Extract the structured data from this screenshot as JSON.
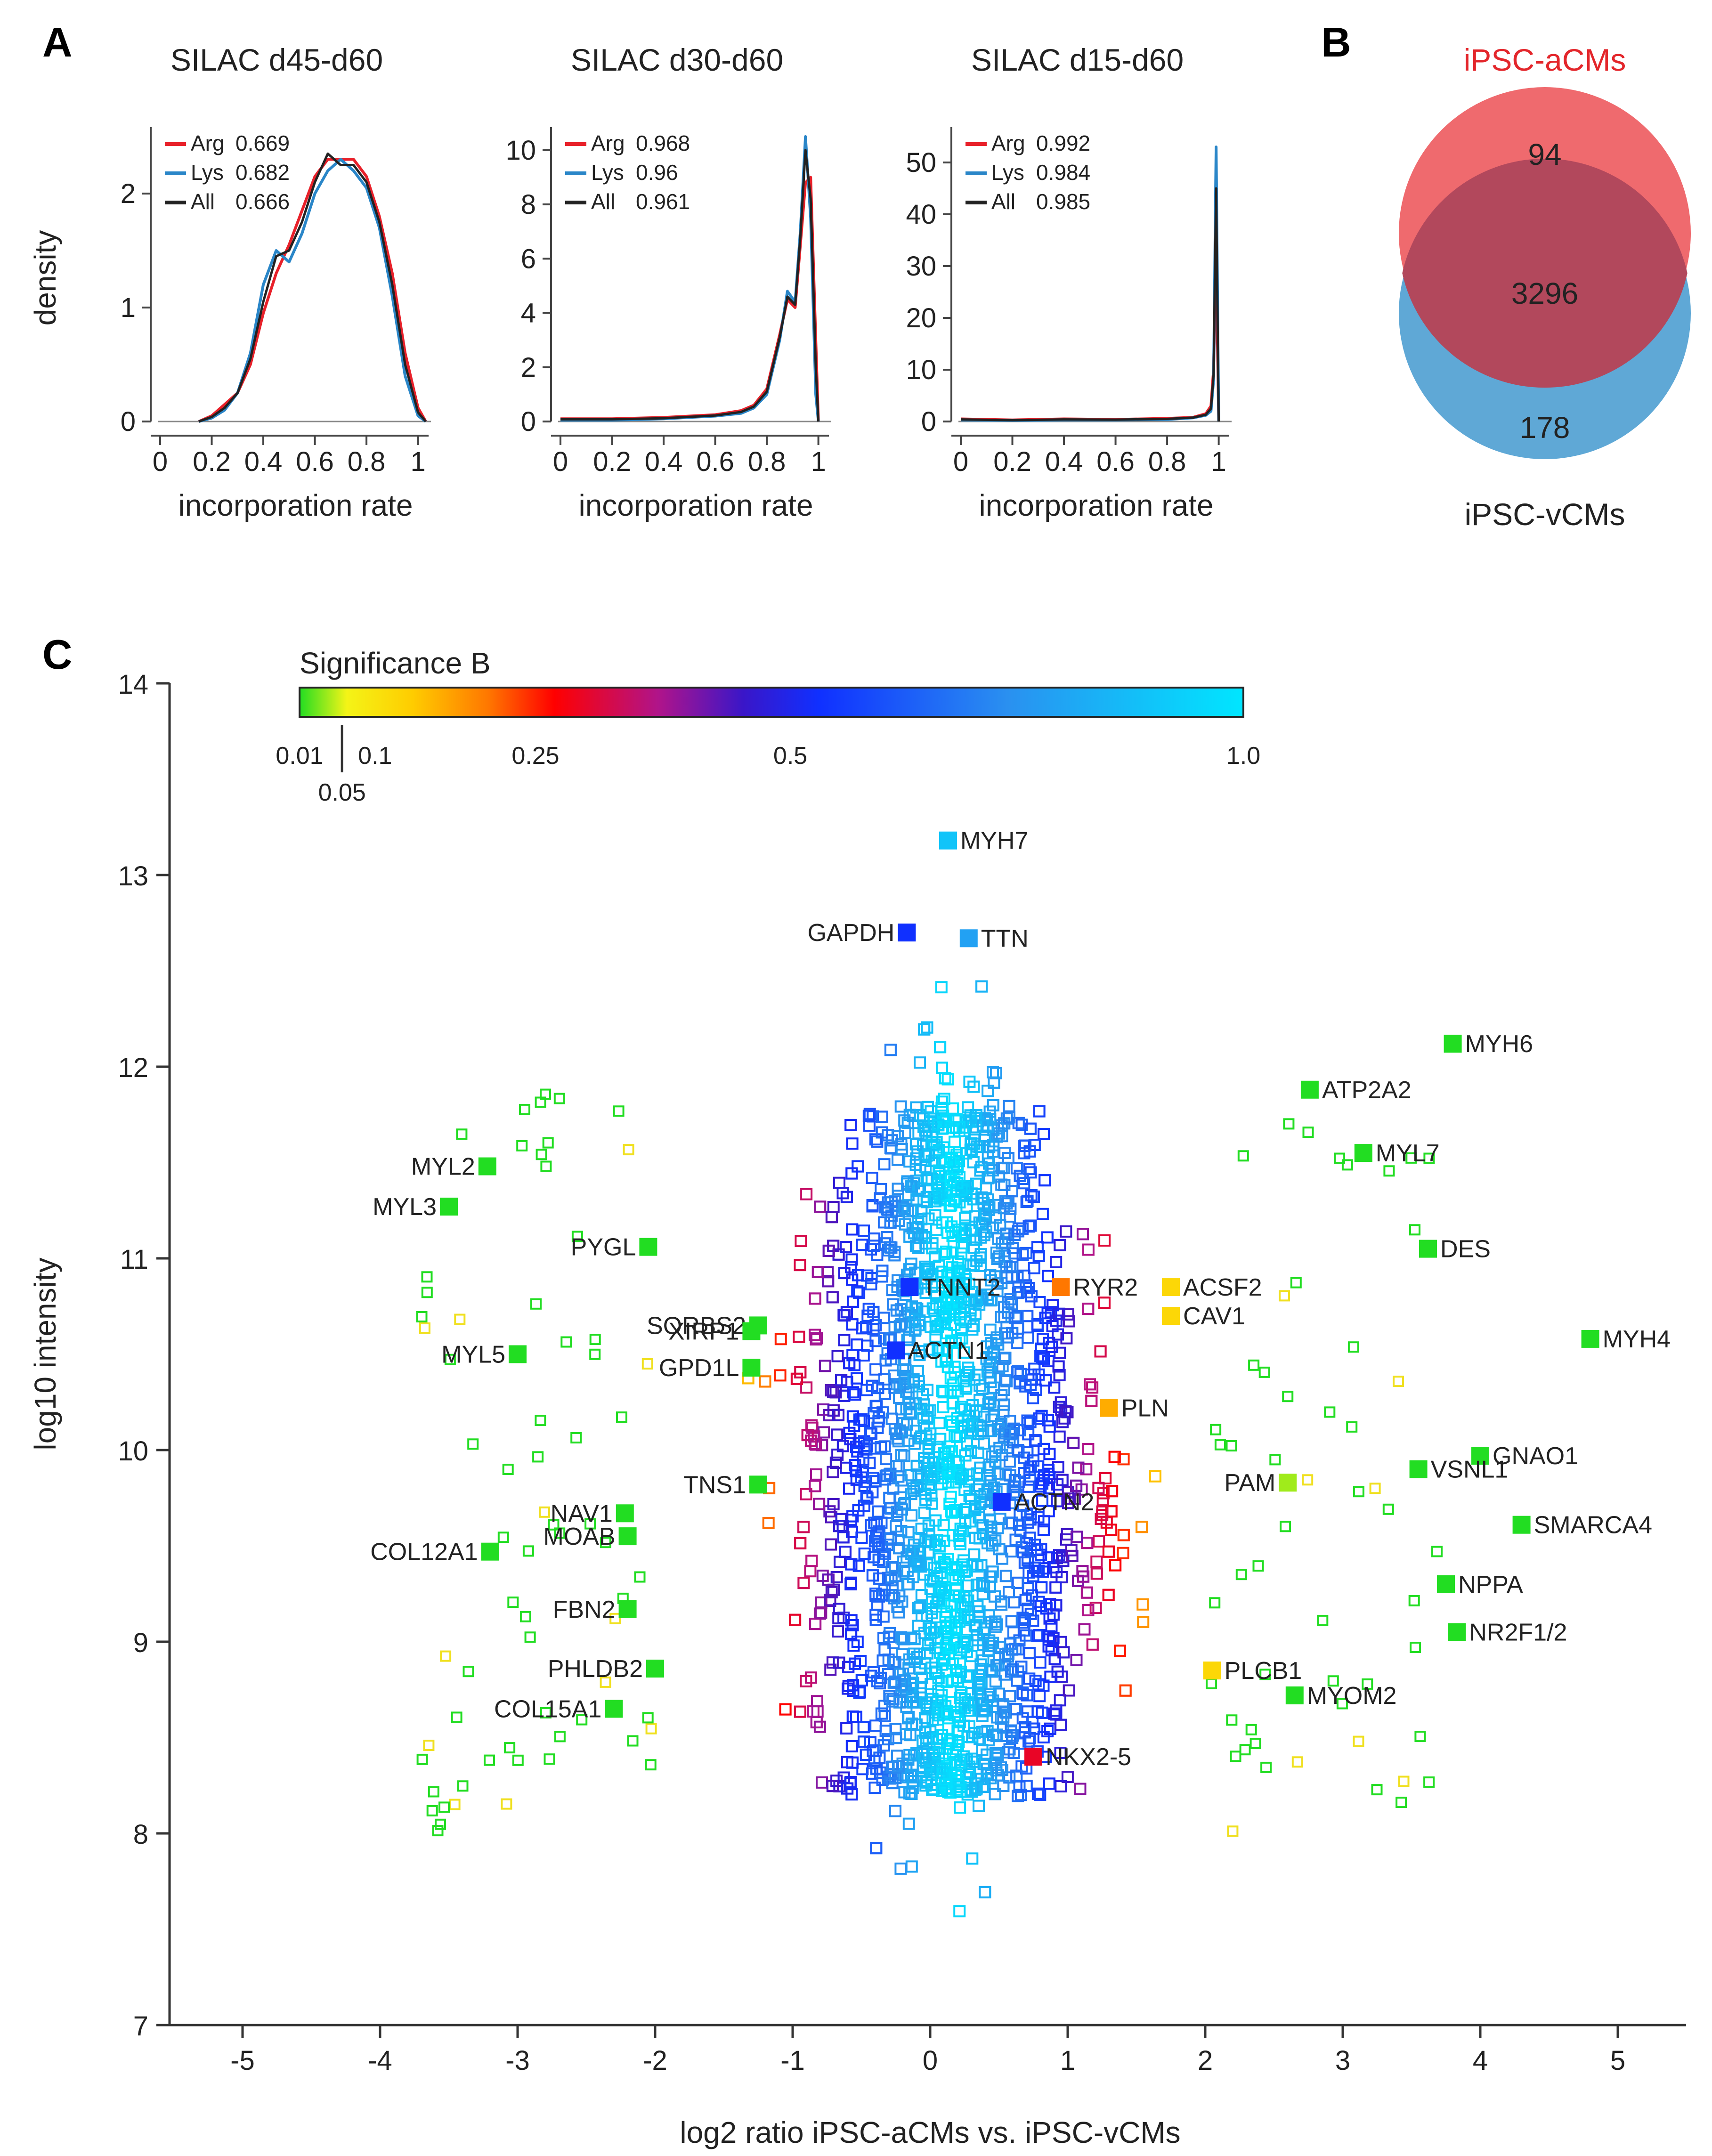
{
  "panels": {
    "A": {
      "letter": "A",
      "subplots": [
        {
          "title": "SILAC d45-d60",
          "ylabel": "density",
          "xlabel": "incorporation rate",
          "yticks": [
            "0",
            "1",
            "2"
          ],
          "xticks": [
            "0",
            "0.2",
            "0.4",
            "0.6",
            "0.8",
            "1"
          ],
          "legend": [
            {
              "name": "Arg",
              "value": "0.669"
            },
            {
              "name": "Lys",
              "value": "0.682"
            },
            {
              "name": "All",
              "value": "0.666"
            }
          ]
        },
        {
          "title": "SILAC d30-d60",
          "xlabel": "incorporation rate",
          "yticks": [
            "0",
            "2",
            "4",
            "6",
            "8",
            "10"
          ],
          "xticks": [
            "0",
            "0.2",
            "0.4",
            "0.6",
            "0.8",
            "1"
          ],
          "legend": [
            {
              "name": "Arg",
              "value": "0.968"
            },
            {
              "name": "Lys",
              "value": "0.96"
            },
            {
              "name": "All",
              "value": "0.961"
            }
          ]
        },
        {
          "title": "SILAC d15-d60",
          "xlabel": "incorporation rate",
          "yticks": [
            "0",
            "10",
            "20",
            "30",
            "40",
            "50"
          ],
          "xticks": [
            "0",
            "0.2",
            "0.4",
            "0.6",
            "0.8",
            "1"
          ],
          "legend": [
            {
              "name": "Arg",
              "value": "0.992"
            },
            {
              "name": "Lys",
              "value": "0.984"
            },
            {
              "name": "All",
              "value": "0.985"
            }
          ]
        }
      ]
    },
    "B": {
      "letter": "B",
      "top_label": "iPSC-aCMs",
      "bottom_label": "iPSC-vCMs",
      "only_top": "94",
      "overlap": "3296",
      "only_bottom": "178"
    },
    "C": {
      "letter": "C",
      "colorbar_title": "Significance B",
      "colorbar_ticks": [
        "0.01",
        "0.1",
        "0.25",
        "0.5",
        "1.0"
      ],
      "colorbar_extra_tick": "0.05",
      "xlabel": "log2 ratio iPSC-aCMs vs. iPSC-vCMs",
      "ylabel": "log10 intensity",
      "xticks": [
        "-5",
        "-4",
        "-3",
        "-2",
        "-1",
        "0",
        "1",
        "2",
        "3",
        "4",
        "5"
      ],
      "yticks": [
        "7",
        "8",
        "9",
        "10",
        "11",
        "12",
        "13",
        "14"
      ]
    }
  },
  "colors": {
    "arg": "#e8212a",
    "lys": "#2a86c8",
    "all": "#222222",
    "venn_top": "#ef6a6e",
    "venn_bottom": "#5fa8d6",
    "venn_overlap": "#b2485c",
    "venn_top_label": "#e3262b",
    "significant": "#22dd22"
  },
  "chart_data": [
    {
      "type": "line",
      "title": "SILAC d45-d60",
      "xlabel": "incorporation rate",
      "ylabel": "density",
      "xlim": [
        0,
        1.05
      ],
      "ylim": [
        0,
        2.5
      ],
      "series": [
        {
          "name": "Arg 0.669",
          "x": [
            0.15,
            0.2,
            0.25,
            0.3,
            0.35,
            0.4,
            0.45,
            0.5,
            0.55,
            0.6,
            0.65,
            0.7,
            0.75,
            0.8,
            0.85,
            0.9,
            0.95,
            1.0,
            1.03
          ],
          "y": [
            0,
            0.05,
            0.15,
            0.25,
            0.5,
            0.95,
            1.3,
            1.55,
            1.85,
            2.15,
            2.3,
            2.3,
            2.3,
            2.15,
            1.8,
            1.3,
            0.6,
            0.12,
            0
          ]
        },
        {
          "name": "Lys 0.682",
          "x": [
            0.15,
            0.2,
            0.25,
            0.3,
            0.35,
            0.4,
            0.45,
            0.5,
            0.55,
            0.6,
            0.65,
            0.7,
            0.75,
            0.8,
            0.85,
            0.9,
            0.95,
            1.0,
            1.03
          ],
          "y": [
            0,
            0.03,
            0.1,
            0.25,
            0.6,
            1.2,
            1.5,
            1.4,
            1.65,
            2.0,
            2.2,
            2.3,
            2.2,
            2.05,
            1.7,
            1.1,
            0.4,
            0.05,
            0
          ]
        },
        {
          "name": "All 0.666",
          "x": [
            0.15,
            0.2,
            0.25,
            0.3,
            0.35,
            0.4,
            0.45,
            0.5,
            0.55,
            0.6,
            0.65,
            0.7,
            0.75,
            0.8,
            0.85,
            0.9,
            0.95,
            1.0,
            1.03
          ],
          "y": [
            0,
            0.04,
            0.12,
            0.25,
            0.55,
            1.05,
            1.45,
            1.5,
            1.75,
            2.1,
            2.35,
            2.25,
            2.25,
            2.1,
            1.75,
            1.2,
            0.5,
            0.08,
            0
          ]
        }
      ]
    },
    {
      "type": "line",
      "title": "SILAC d30-d60",
      "xlabel": "incorporation rate",
      "ylabel": "",
      "xlim": [
        0,
        1.05
      ],
      "ylim": [
        0,
        10.5
      ],
      "series": [
        {
          "name": "Arg 0.968",
          "x": [
            0,
            0.2,
            0.4,
            0.6,
            0.7,
            0.75,
            0.8,
            0.85,
            0.88,
            0.91,
            0.93,
            0.95,
            0.97,
            0.99,
            1.0
          ],
          "y": [
            0.1,
            0.1,
            0.15,
            0.25,
            0.4,
            0.6,
            1.2,
            3.2,
            4.5,
            4.2,
            6.5,
            8.8,
            9.0,
            3.0,
            0
          ]
        },
        {
          "name": "Lys 0.96",
          "x": [
            0,
            0.2,
            0.4,
            0.6,
            0.7,
            0.75,
            0.8,
            0.85,
            0.88,
            0.91,
            0.93,
            0.95,
            0.97,
            0.99,
            1.0
          ],
          "y": [
            0.05,
            0.05,
            0.1,
            0.2,
            0.3,
            0.5,
            1.0,
            3.0,
            4.8,
            4.4,
            7.0,
            10.5,
            7.5,
            1.0,
            0
          ]
        },
        {
          "name": "All 0.961",
          "x": [
            0,
            0.2,
            0.4,
            0.6,
            0.7,
            0.75,
            0.8,
            0.85,
            0.88,
            0.91,
            0.93,
            0.95,
            0.97,
            0.99,
            1.0
          ],
          "y": [
            0.08,
            0.08,
            0.12,
            0.22,
            0.35,
            0.55,
            1.1,
            3.1,
            4.6,
            4.3,
            6.8,
            10.0,
            8.2,
            2.0,
            0
          ]
        }
      ]
    },
    {
      "type": "line",
      "title": "SILAC d15-d60",
      "xlabel": "incorporation rate",
      "ylabel": "",
      "xlim": [
        0,
        1.05
      ],
      "ylim": [
        0,
        55
      ],
      "series": [
        {
          "name": "Arg 0.992",
          "x": [
            0,
            0.2,
            0.4,
            0.6,
            0.8,
            0.9,
            0.95,
            0.97,
            0.98,
            0.99,
            1.0
          ],
          "y": [
            0.5,
            0.3,
            0.5,
            0.4,
            0.6,
            0.8,
            1.5,
            3,
            10,
            32,
            0
          ]
        },
        {
          "name": "Lys 0.984",
          "x": [
            0,
            0.2,
            0.4,
            0.6,
            0.8,
            0.9,
            0.95,
            0.97,
            0.98,
            0.99,
            1.0
          ],
          "y": [
            0.3,
            0.2,
            0.3,
            0.3,
            0.4,
            0.7,
            1.2,
            2,
            8,
            53,
            0
          ]
        },
        {
          "name": "All 0.985",
          "x": [
            0,
            0.2,
            0.4,
            0.6,
            0.8,
            0.9,
            0.95,
            0.97,
            0.98,
            0.99,
            1.0
          ],
          "y": [
            0.4,
            0.25,
            0.4,
            0.35,
            0.5,
            0.75,
            1.3,
            2.5,
            9,
            45,
            0
          ]
        }
      ]
    },
    {
      "type": "scatter",
      "title": "",
      "xlabel": "log2 ratio iPSC-aCMs vs. iPSC-vCMs",
      "ylabel": "log10 intensity",
      "xlim": [
        -5.5,
        5.5
      ],
      "ylim": [
        7,
        14
      ],
      "colorbar": {
        "title": "Significance B",
        "range": [
          0,
          1.0
        ],
        "ticks": [
          0.01,
          0.05,
          0.1,
          0.25,
          0.5,
          1.0
        ]
      },
      "labeled_points": [
        {
          "label": "MYH7",
          "x": 0.13,
          "y": 13.18,
          "sig": 0.9
        },
        {
          "label": "GAPDH",
          "x": -0.17,
          "y": 12.7,
          "sig": 0.55
        },
        {
          "label": "TTN",
          "x": 0.28,
          "y": 12.67,
          "sig": 0.8
        },
        {
          "label": "MYH6",
          "x": 3.8,
          "y": 12.12,
          "sig": 0.01
        },
        {
          "label": "ATP2A2",
          "x": 2.76,
          "y": 11.88,
          "sig": 0.01
        },
        {
          "label": "MYL7",
          "x": 3.15,
          "y": 11.55,
          "sig": 0.01
        },
        {
          "label": "MYL2",
          "x": -3.22,
          "y": 11.48,
          "sig": 0.01
        },
        {
          "label": "MYL3",
          "x": -3.5,
          "y": 11.27,
          "sig": 0.01
        },
        {
          "label": "PYGL",
          "x": -2.05,
          "y": 11.06,
          "sig": 0.01
        },
        {
          "label": "SORBS2",
          "x": -1.25,
          "y": 10.65,
          "sig": 0.01
        },
        {
          "label": "DES",
          "x": 3.62,
          "y": 11.05,
          "sig": 0.01
        },
        {
          "label": "TNNT2",
          "x": -0.15,
          "y": 10.85,
          "sig": 0.55
        },
        {
          "label": "RYR2",
          "x": 0.95,
          "y": 10.85,
          "sig": 0.2
        },
        {
          "label": "ACSF2",
          "x": 1.75,
          "y": 10.85,
          "sig": 0.1
        },
        {
          "label": "XIRP1",
          "x": -1.3,
          "y": 10.62,
          "sig": 0.01
        },
        {
          "label": "CAV1",
          "x": 1.75,
          "y": 10.7,
          "sig": 0.1
        },
        {
          "label": "MYL5",
          "x": -3.0,
          "y": 10.5,
          "sig": 0.01
        },
        {
          "label": "ACTN1",
          "x": -0.25,
          "y": 10.52,
          "sig": 0.55
        },
        {
          "label": "MYH4",
          "x": 4.8,
          "y": 10.58,
          "sig": 0.01
        },
        {
          "label": "GPD1L",
          "x": -1.3,
          "y": 10.43,
          "sig": 0.01
        },
        {
          "label": "PLN",
          "x": 1.3,
          "y": 10.22,
          "sig": 0.15
        },
        {
          "label": "GNAO1",
          "x": 4.0,
          "y": 9.97,
          "sig": 0.01
        },
        {
          "label": "PAM",
          "x": 2.6,
          "y": 9.83,
          "sig": 0.03
        },
        {
          "label": "VSNL1",
          "x": 3.55,
          "y": 9.9,
          "sig": 0.01
        },
        {
          "label": "TNS1",
          "x": -1.25,
          "y": 9.82,
          "sig": 0.01
        },
        {
          "label": "ACTN2",
          "x": 0.52,
          "y": 9.73,
          "sig": 0.55
        },
        {
          "label": "NAV1",
          "x": -2.22,
          "y": 9.67,
          "sig": 0.01
        },
        {
          "label": "SMARCA4",
          "x": 4.3,
          "y": 9.61,
          "sig": 0.01
        },
        {
          "label": "MOAB",
          "x": -2.2,
          "y": 9.55,
          "sig": 0.01
        },
        {
          "label": "COL12A1",
          "x": -3.2,
          "y": 9.47,
          "sig": 0.01
        },
        {
          "label": "NPPA",
          "x": 3.75,
          "y": 9.3,
          "sig": 0.01
        },
        {
          "label": "FBN2",
          "x": -2.2,
          "y": 9.17,
          "sig": 0.01
        },
        {
          "label": "NR2F1/2",
          "x": 3.83,
          "y": 9.05,
          "sig": 0.01
        },
        {
          "label": "PHLDB2",
          "x": -2.0,
          "y": 8.86,
          "sig": 0.01
        },
        {
          "label": "PLCB1",
          "x": 2.05,
          "y": 8.85,
          "sig": 0.1
        },
        {
          "label": "MYOM2",
          "x": 2.65,
          "y": 8.72,
          "sig": 0.01
        },
        {
          "label": "COL15A1",
          "x": -2.3,
          "y": 8.65,
          "sig": 0.01
        },
        {
          "label": "NKX2-5",
          "x": 0.75,
          "y": 8.4,
          "sig": 0.3
        }
      ]
    }
  ]
}
